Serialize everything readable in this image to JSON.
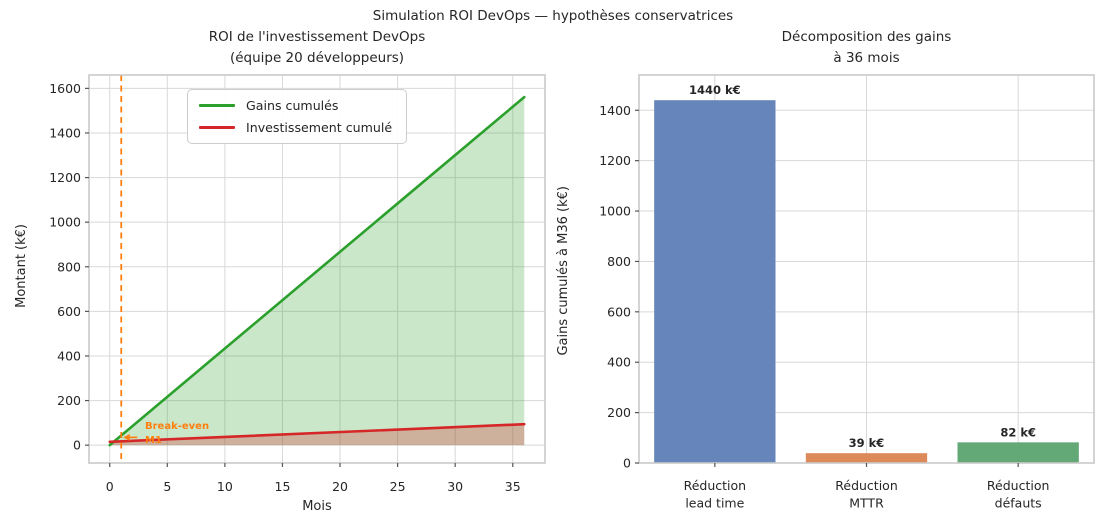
{
  "figure": {
    "suptitle": "Simulation ROI DevOps — hypothèses conservatrices",
    "text_color": "#262626",
    "grid_color": "#d8d8d8",
    "spine_color": "#c9c9c9"
  },
  "left_chart": {
    "title_line1": "ROI de l'investissement DevOps",
    "title_line2": "(équipe 20 développeurs)",
    "xlabel": "Mois",
    "ylabel": "Montant (k€)",
    "legend": {
      "entries": [
        {
          "label": "Gains cumulés",
          "color": "#2ca02c"
        },
        {
          "label": "Investissement cumulé",
          "color": "#d62728"
        }
      ]
    },
    "annotation": {
      "line1": "Break-even",
      "line2": "M1",
      "color": "#ff7f0e"
    }
  },
  "right_chart": {
    "title_line1": "Décomposition des gains",
    "title_line2": "à 36 mois",
    "ylabel": "Gains cumulés à M36 (k€)"
  },
  "chart_data": [
    {
      "type": "line",
      "title": "ROI de l'investissement DevOps (équipe 20 développeurs)",
      "xlabel": "Mois",
      "ylabel": "Montant (k€)",
      "xlim": [
        -1.8,
        37.8
      ],
      "ylim": [
        -80,
        1660
      ],
      "xticks": [
        0,
        5,
        10,
        15,
        20,
        25,
        30,
        35
      ],
      "yticks": [
        0,
        200,
        400,
        600,
        800,
        1000,
        1200,
        1400,
        1600
      ],
      "grid": true,
      "legend_position": "upper-left",
      "series": [
        {
          "name": "Gains cumulés",
          "color": "#2ca02c",
          "fill": "rgba(44,160,44,0.25)",
          "x": [
            0,
            36
          ],
          "y": [
            0,
            1561
          ]
        },
        {
          "name": "Investissement cumulé",
          "color": "#d62728",
          "fill": "rgba(214,39,40,0.28)",
          "x": [
            0,
            36
          ],
          "y": [
            15,
            94
          ]
        }
      ],
      "breakeven": {
        "month": 1,
        "label": "Break-even M1",
        "color": "#ff7f0e",
        "arrow_y": 35
      }
    },
    {
      "type": "bar",
      "title": "Décomposition des gains à 36 mois",
      "ylabel": "Gains cumulés à M36 (k€)",
      "categories": [
        "Réduction\nlead time",
        "Réduction\nMTTR",
        "Réduction\ndéfauts"
      ],
      "values": [
        1440,
        39,
        82
      ],
      "bar_labels": [
        "1440 k€",
        "39 k€",
        "82 k€"
      ],
      "bar_colors": [
        "#6685ba",
        "#dd8a5b",
        "#63a877"
      ],
      "ylim": [
        0,
        1540
      ],
      "yticks": [
        0,
        200,
        400,
        600,
        800,
        1000,
        1200,
        1400
      ],
      "grid": true
    }
  ]
}
